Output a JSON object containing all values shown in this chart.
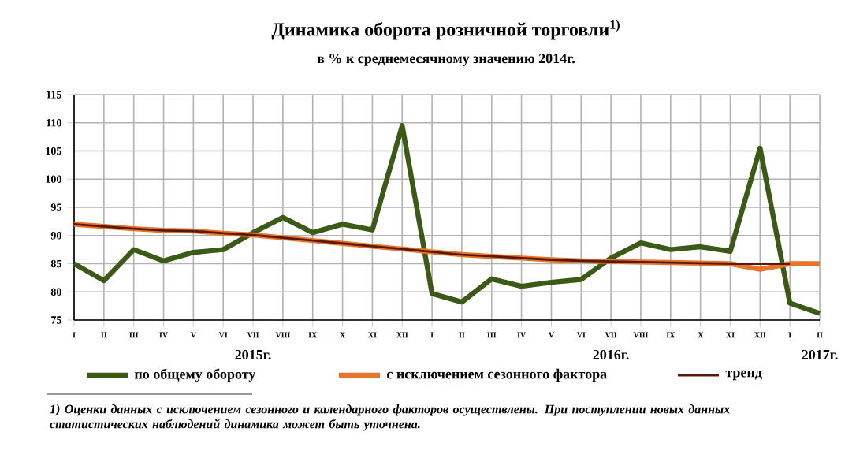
{
  "chart_data": {
    "type": "line",
    "title": "Динамика оборота розничной торговли$^{1)}$",
    "subtitle": "в % к среднемесячному значению 2014г.",
    "categories": [
      "I",
      "II",
      "III",
      "IV",
      "V",
      "VI",
      "VII",
      "VIII",
      "IX",
      "X",
      "XI",
      "XII",
      "I",
      "II",
      "III",
      "IV",
      "V",
      "VI",
      "VII",
      "VIII",
      "IX",
      "X",
      "XI",
      "XII",
      "I",
      "II"
    ],
    "series": [
      {
        "name": "по общему обороту",
        "color": "#3b5a16",
        "values": [
          85,
          82,
          87.5,
          85.5,
          87,
          87.5,
          90.5,
          93.2,
          90.5,
          92,
          91,
          109.5,
          79.7,
          78.2,
          82.3,
          81,
          81.7,
          82.2,
          86,
          88.7,
          87.5,
          88,
          87.2,
          105.5,
          78,
          76.2
        ]
      },
      {
        "name": "с исключением сезонного фактора",
        "color": "#e8742c",
        "values": [
          92,
          91.6,
          91.2,
          90.9,
          90.8,
          90.4,
          90.1,
          89.6,
          89.1,
          88.6,
          88.1,
          87.6,
          87.1,
          86.6,
          86.3,
          86,
          85.7,
          85.5,
          85.4,
          85.3,
          85.2,
          85.1,
          85,
          84,
          85,
          85
        ]
      },
      {
        "name": "тренд",
        "color": "#5a1a0a",
        "values": [
          92,
          91.6,
          91.2,
          90.9,
          90.8,
          90.4,
          90.1,
          89.6,
          89.1,
          88.6,
          88.1,
          87.6,
          87.1,
          86.6,
          86.3,
          86,
          85.7,
          85.5,
          85.4,
          85.3,
          85.2,
          85.1,
          85,
          85,
          85,
          null
        ]
      }
    ],
    "ylim": [
      75,
      115
    ],
    "yticks": [
      75,
      80,
      85,
      90,
      95,
      100,
      105,
      110,
      115
    ],
    "grid": true,
    "legend": "bottom",
    "marker": "none",
    "line_style": "solid",
    "annotations": [
      "2015г.",
      "2016г.",
      "2017г.",
      "1) Оценки данных с исключением сезонного и календарного факторов осуществлены. При поступлении новых данных статистических наблюдений динамика может быть уточнена."
    ]
  }
}
